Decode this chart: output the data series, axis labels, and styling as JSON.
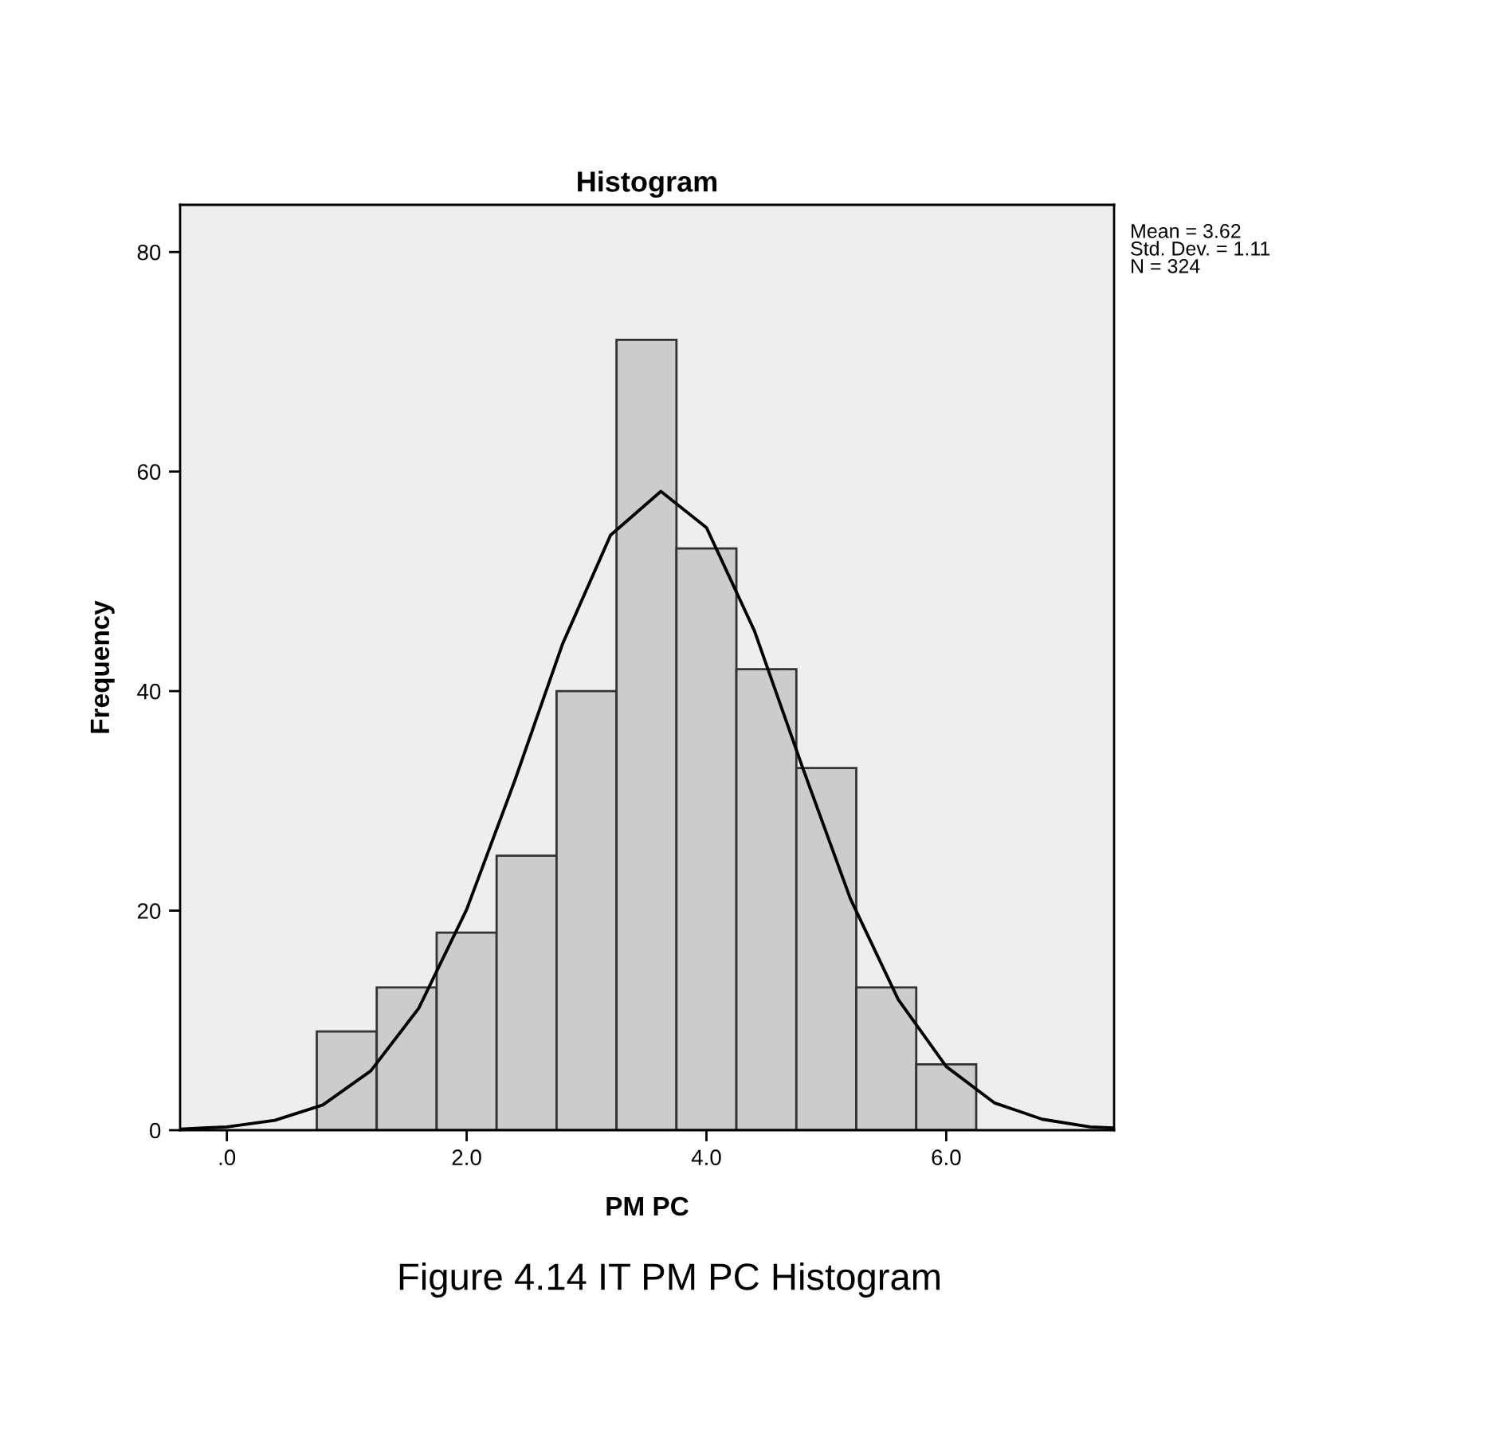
{
  "chart_data": {
    "type": "histogram",
    "title": "Histogram",
    "xlabel": "PM PC",
    "ylabel": "Frequency",
    "series": [
      {
        "color": "#cccccc",
        "bins": [
          0.75,
          1.25,
          1.75,
          2.25,
          2.75,
          3.25,
          3.75,
          4.25,
          4.75,
          5.25,
          5.75,
          6.25
        ],
        "values": [
          9,
          13,
          18,
          25,
          40,
          72,
          53,
          42,
          33,
          13,
          6
        ]
      },
      {
        "type": "line",
        "color": "#000000",
        "x": [
          -0.39,
          0.0,
          0.4,
          0.8,
          1.2,
          1.6,
          2.0,
          2.4,
          2.8,
          3.2,
          3.62,
          4.0,
          4.4,
          4.8,
          5.2,
          5.6,
          6.0,
          6.4,
          6.8,
          7.2,
          7.4
        ],
        "values": [
          0.1,
          0.3,
          0.9,
          2.3,
          5.4,
          11.1,
          20.1,
          31.8,
          44.3,
          54.2,
          58.2,
          54.9,
          45.5,
          33.1,
          21.1,
          11.9,
          5.8,
          2.5,
          1.0,
          0.3,
          0.2
        ]
      }
    ],
    "xlim": [
      -0.39,
      7.4
    ],
    "ylim": [
      0,
      84.3
    ],
    "xticks": [
      {
        "value": 0,
        "label": ".0"
      },
      {
        "value": 2,
        "label": "2.0"
      },
      {
        "value": 4,
        "label": "4.0"
      },
      {
        "value": 6,
        "label": "6.0"
      }
    ],
    "yticks": [
      0,
      20,
      40,
      60,
      80
    ],
    "grid": false,
    "legend": false,
    "annotations": [
      "Mean = 3.62",
      "Std. Dev. = 1.11",
      "N = 324",
      "Figure 4.14 IT PM PC Histogram"
    ]
  }
}
